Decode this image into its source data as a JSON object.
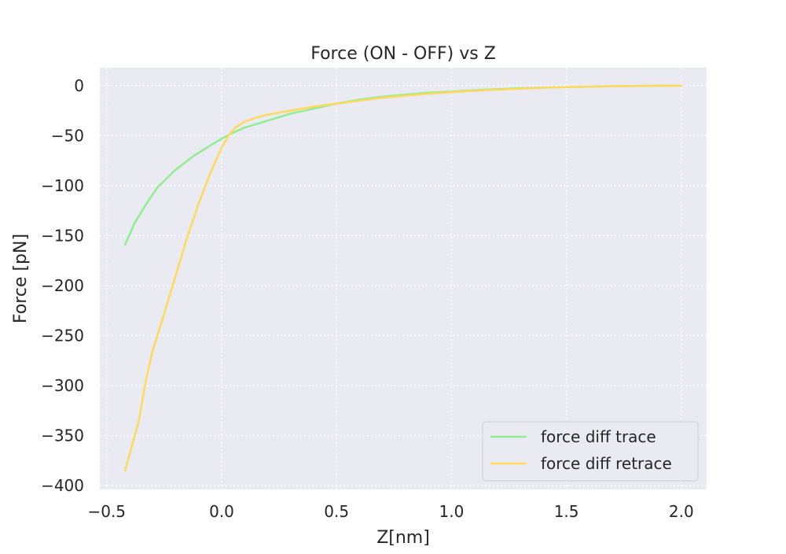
{
  "chart_data": {
    "type": "line",
    "title": "Force (ON - OFF) vs Z",
    "xlabel": "Z[nm]",
    "ylabel": "Force [pN]",
    "xlim": [
      -0.53,
      2.11
    ],
    "ylim": [
      -404,
      18
    ],
    "xticks": [
      -0.5,
      0.0,
      0.5,
      1.0,
      1.5,
      2.0
    ],
    "xtick_labels": [
      "−0.5",
      "0.0",
      "0.5",
      "1.0",
      "1.5",
      "2.0"
    ],
    "yticks": [
      0,
      -50,
      -100,
      -150,
      -200,
      -250,
      -300,
      -350,
      -400
    ],
    "ytick_labels": [
      "0",
      "−50",
      "−100",
      "−150",
      "−200",
      "−250",
      "−300",
      "−350",
      "−400"
    ],
    "grid": true,
    "legend_position": "lower-right",
    "series": [
      {
        "name": "force diff trace",
        "color": "#90ee90",
        "x": [
          -0.42,
          -0.38,
          -0.33,
          -0.28,
          -0.2,
          -0.12,
          -0.05,
          0.0,
          0.05,
          0.1,
          0.2,
          0.3,
          0.4,
          0.5,
          0.6,
          0.7,
          0.8,
          0.9,
          1.0,
          1.1,
          1.2,
          1.3,
          1.4,
          1.5,
          1.6,
          1.7,
          1.8,
          1.9,
          2.0
        ],
        "y": [
          -159,
          -138,
          -119,
          -102,
          -84,
          -70,
          -60,
          -53,
          -47,
          -42,
          -35,
          -28,
          -23,
          -18,
          -14,
          -11,
          -9,
          -7,
          -6,
          -4.5,
          -3.5,
          -2.5,
          -2,
          -1.5,
          -1,
          -0.5,
          -0.3,
          -0.1,
          0
        ]
      },
      {
        "name": "force diff retrace",
        "color": "#ffd85c",
        "x": [
          -0.42,
          -0.39,
          -0.36,
          -0.33,
          -0.3,
          -0.25,
          -0.2,
          -0.15,
          -0.1,
          -0.05,
          0.0,
          0.03,
          0.06,
          0.1,
          0.15,
          0.2,
          0.3,
          0.4,
          0.5,
          0.6,
          0.7,
          0.8,
          0.9,
          1.0,
          1.1,
          1.2,
          1.3,
          1.4,
          1.5,
          1.6,
          1.7,
          1.8,
          1.9,
          2.0
        ],
        "y": [
          -385,
          -360,
          -335,
          -295,
          -265,
          -228,
          -190,
          -152,
          -118,
          -88,
          -62,
          -50,
          -42,
          -36,
          -32,
          -29,
          -25,
          -21,
          -18,
          -15,
          -12,
          -10,
          -8,
          -6.5,
          -5,
          -4,
          -3,
          -2,
          -1.5,
          -1,
          -0.5,
          -0.3,
          -0.1,
          0
        ]
      }
    ]
  }
}
